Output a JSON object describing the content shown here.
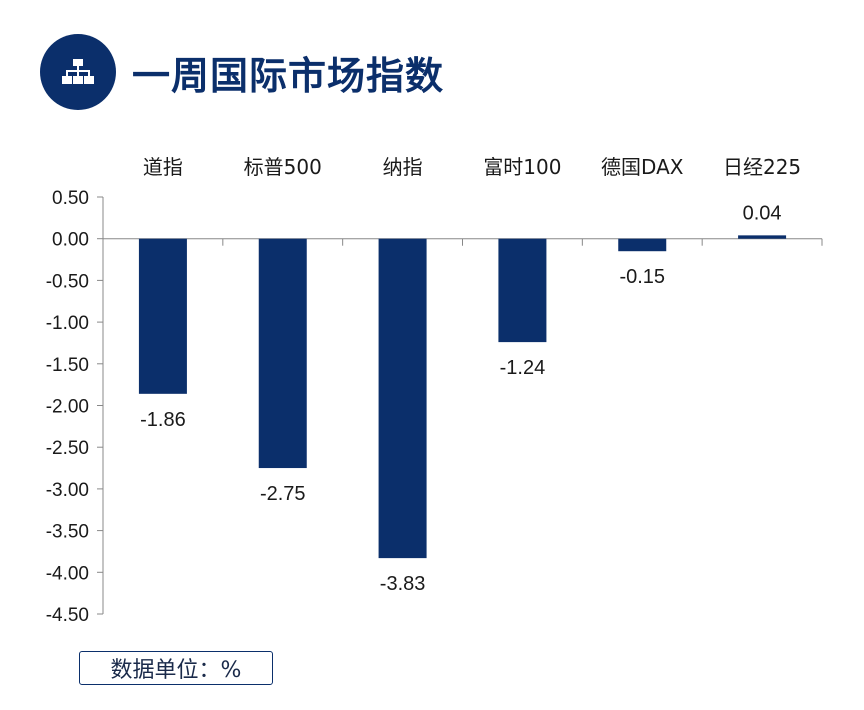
{
  "header": {
    "title": "一周国际市场指数",
    "icon": "sitemap-icon"
  },
  "unit_note": "数据单位：%",
  "colors": {
    "bar": "#0b2f6b",
    "axis": "#888888",
    "text": "#1a1a1a"
  },
  "chart_data": {
    "type": "bar",
    "title": "",
    "xlabel": "",
    "ylabel": "",
    "categories": [
      "道指",
      "标普500",
      "纳指",
      "富时100",
      "德国DAX",
      "日经225"
    ],
    "values": [
      -1.86,
      -2.75,
      -3.83,
      -1.24,
      -0.15,
      0.04
    ],
    "data_labels": [
      "-1.86",
      "-2.75",
      "-3.83",
      "-1.24",
      "-0.15",
      "0.04"
    ],
    "ylim": [
      -4.5,
      0.5
    ],
    "yticks": [
      "0.50",
      "0.00",
      "-0.50",
      "-1.00",
      "-1.50",
      "-2.00",
      "-2.50",
      "-3.00",
      "-3.50",
      "-4.00",
      "-4.50"
    ],
    "ytick_values": [
      0.5,
      0,
      -0.5,
      -1,
      -1.5,
      -2,
      -2.5,
      -3,
      -3.5,
      -4,
      -4.5
    ],
    "category_labels_position": "top",
    "grid": false,
    "legend": "none"
  }
}
